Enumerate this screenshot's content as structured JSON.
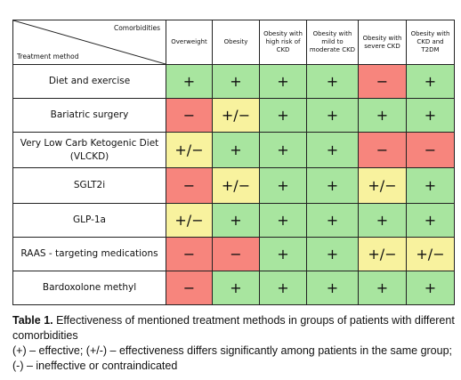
{
  "table": {
    "corner": {
      "top": "Comorbidities",
      "bottom": "Treatment method"
    },
    "columns": [
      "Overweight",
      "Obesity",
      "Obesity with high risk of CKD",
      "Obesity with mild to moderate CKD",
      "Obesity with severe CKD",
      "Obesity with CKD and T2DM"
    ],
    "rows": [
      {
        "label": "Diet and exercise",
        "cells": [
          "+",
          "+",
          "+",
          "+",
          "−",
          "+"
        ],
        "colors": [
          "#a8e59f",
          "#a8e59f",
          "#a8e59f",
          "#a8e59f",
          "#f7857d",
          "#a8e59f"
        ]
      },
      {
        "label": "Bariatric surgery",
        "cells": [
          "−",
          "+/−",
          "+",
          "+",
          "+",
          "+"
        ],
        "colors": [
          "#f7857d",
          "#f8f29e",
          "#a8e59f",
          "#a8e59f",
          "#a8e59f",
          "#a8e59f"
        ]
      },
      {
        "label": "Very Low Carb Ketogenic Diet (VLCKD)",
        "cells": [
          "+/−",
          "+",
          "+",
          "+",
          "−",
          "−"
        ],
        "colors": [
          "#f8f29e",
          "#a8e59f",
          "#a8e59f",
          "#a8e59f",
          "#f7857d",
          "#f7857d"
        ]
      },
      {
        "label": "SGLT2i",
        "cells": [
          "−",
          "+/−",
          "+",
          "+",
          "+/−",
          "+"
        ],
        "colors": [
          "#f7857d",
          "#f8f29e",
          "#a8e59f",
          "#a8e59f",
          "#f8f29e",
          "#a8e59f"
        ]
      },
      {
        "label": "GLP-1a",
        "cells": [
          "+/−",
          "+",
          "+",
          "+",
          "+",
          "+"
        ],
        "colors": [
          "#f8f29e",
          "#a8e59f",
          "#a8e59f",
          "#a8e59f",
          "#a8e59f",
          "#a8e59f"
        ]
      },
      {
        "label": "RAAS - targeting medications",
        "cells": [
          "−",
          "−",
          "+",
          "+",
          "+/−",
          "+/−"
        ],
        "colors": [
          "#f7857d",
          "#f7857d",
          "#a8e59f",
          "#a8e59f",
          "#f8f29e",
          "#f8f29e"
        ]
      },
      {
        "label": "Bardoxolone methyl",
        "cells": [
          "−",
          "+",
          "+",
          "+",
          "+",
          "+"
        ],
        "colors": [
          "#f7857d",
          "#a8e59f",
          "#a8e59f",
          "#a8e59f",
          "#a8e59f",
          "#a8e59f"
        ]
      }
    ]
  },
  "caption": {
    "label": "Table 1.",
    "text": " Effectiveness of mentioned treatment methods in groups of patients with different comorbidities",
    "legend": "(+) – effective; (+/-) – effectiveness differs significantly among patients in the same group; (-) – ineffective or contraindicated"
  }
}
